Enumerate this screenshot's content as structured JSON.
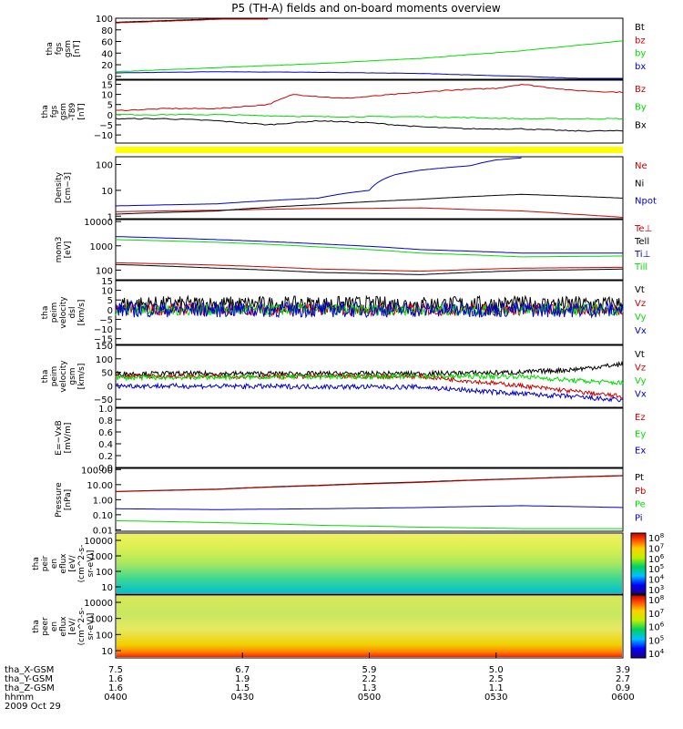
{
  "title": "P5 (TH-A) fields and on-board moments overview",
  "colors": {
    "black": "#000000",
    "red": "#cc0000",
    "green": "#00dd00",
    "blue": "#0000cc",
    "yellow": "#ffff00"
  },
  "date_label": "2009 Oct 29",
  "time_axis": {
    "row_labels": [
      "tha_X-GSM",
      "tha_Y-GSM",
      "tha_Z-GSM",
      "hhmm"
    ],
    "ticks": [
      {
        "x": "7.5",
        "y": "1.6",
        "z": "1.6",
        "hhmm": "0400"
      },
      {
        "x": "6.7",
        "y": "1.9",
        "z": "1.5",
        "hhmm": "0430"
      },
      {
        "x": "5.9",
        "y": "2.2",
        "z": "1.3",
        "hhmm": "0500"
      },
      {
        "x": "5.0",
        "y": "2.5",
        "z": "1.1",
        "hhmm": "0530"
      },
      {
        "x": "3.9",
        "y": "2.7",
        "z": "0.9",
        "hhmm": "0600"
      }
    ]
  },
  "chart_data": [
    {
      "type": "line",
      "ylabel": [
        "tha",
        "fgs",
        "gsm",
        "[nT]"
      ],
      "ylim": [
        -5,
        100
      ],
      "yticks": [
        "0",
        "20",
        "40",
        "60",
        "80",
        "100"
      ],
      "ytickvals": [
        0,
        20,
        40,
        60,
        80,
        100
      ],
      "series": [
        {
          "name": "Bt",
          "color": "black",
          "x": [
            0,
            0.1,
            0.2,
            0.3
          ],
          "values": [
            93,
            96,
            99,
            103
          ]
        },
        {
          "name": "bz",
          "color": "red",
          "x": [
            0,
            0.1,
            0.2,
            0.3
          ],
          "values": [
            92,
            95,
            98,
            102
          ]
        },
        {
          "name": "by",
          "color": "green",
          "x": [
            0,
            0.2,
            0.4,
            0.6,
            0.8,
            1.0
          ],
          "values": [
            8,
            15,
            22,
            31,
            44,
            61
          ]
        },
        {
          "name": "bx",
          "color": "blue",
          "x": [
            0,
            0.2,
            0.4,
            0.6,
            0.8,
            1.0
          ],
          "values": [
            6,
            8,
            7,
            5,
            0,
            -6
          ]
        }
      ]
    },
    {
      "type": "line",
      "ylabel": [
        "tha",
        "fgs",
        "gsm",
        "-T89",
        "[nT]"
      ],
      "ylim": [
        -14,
        17
      ],
      "yticks": [
        "−10",
        "−5",
        "0",
        "5",
        "10",
        "15"
      ],
      "ytickvals": [
        -10,
        -5,
        0,
        5,
        10,
        15
      ],
      "series": [
        {
          "name": "Bz",
          "color": "red",
          "x": [
            0,
            0.1,
            0.2,
            0.3,
            0.35,
            0.45,
            0.55,
            0.65,
            0.75,
            0.8,
            0.9,
            1.0
          ],
          "values": [
            2,
            3,
            3,
            5,
            10,
            8,
            10,
            12,
            13,
            15,
            12,
            11
          ]
        },
        {
          "name": "By",
          "color": "green",
          "x": [
            0,
            0.2,
            0.4,
            0.6,
            0.8,
            1.0
          ],
          "values": [
            0,
            0,
            -1,
            -1,
            -2,
            -2
          ]
        },
        {
          "name": "Bx",
          "color": "black",
          "x": [
            0,
            0.1,
            0.2,
            0.3,
            0.4,
            0.5,
            0.6,
            0.7,
            0.8,
            0.9,
            1.0
          ],
          "values": [
            -2,
            -2,
            -3,
            -5,
            -3,
            -4,
            -6,
            -7,
            -7,
            -8,
            -8
          ]
        }
      ]
    },
    {
      "type": "line",
      "scale": "log",
      "ylabel": [
        "Density",
        "[cm−3]"
      ],
      "ylim": [
        0.8,
        200
      ],
      "yticks": [
        "1",
        "10",
        "100"
      ],
      "ytickvals": [
        1,
        10,
        100
      ],
      "series": [
        {
          "name": "Ne",
          "color": "red",
          "x": [
            0,
            0.2,
            0.4,
            0.5,
            0.6,
            0.7,
            0.8,
            0.9,
            1.0
          ],
          "values": [
            1.5,
            1.7,
            2.0,
            2.0,
            2.1,
            1.8,
            1.6,
            1.2,
            0.9
          ]
        },
        {
          "name": "Ni",
          "color": "black",
          "x": [
            0,
            0.2,
            0.4,
            0.6,
            0.8,
            1.0
          ],
          "values": [
            1.2,
            1.6,
            2.8,
            4.5,
            7,
            5
          ]
        },
        {
          "name": "Npot",
          "color": "blue",
          "x": [
            0,
            0.2,
            0.4,
            0.5,
            0.55,
            0.6,
            0.7,
            0.75,
            0.8
          ],
          "values": [
            2.5,
            3,
            5,
            10,
            40,
            60,
            90,
            150,
            180
          ]
        }
      ]
    },
    {
      "type": "line",
      "scale": "log",
      "ylabel": [
        "mom3",
        "[eV]"
      ],
      "ylim": [
        40,
        12000
      ],
      "yticks": [
        "100",
        "1000",
        "10000"
      ],
      "ytickvals": [
        100,
        1000,
        10000
      ],
      "series": [
        {
          "name": "Te⊥",
          "color": "red",
          "x": [
            0,
            0.2,
            0.4,
            0.6,
            0.8,
            1.0
          ],
          "values": [
            200,
            160,
            110,
            90,
            120,
            130
          ]
        },
        {
          "name": "Tell",
          "color": "black",
          "x": [
            0,
            0.2,
            0.4,
            0.6,
            0.8,
            1.0
          ],
          "values": [
            170,
            120,
            80,
            65,
            95,
            110
          ]
        },
        {
          "name": "Ti⊥",
          "color": "blue",
          "x": [
            0,
            0.2,
            0.4,
            0.6,
            0.8,
            1.0
          ],
          "values": [
            2400,
            1800,
            1200,
            700,
            500,
            500
          ]
        },
        {
          "name": "Till",
          "color": "green",
          "x": [
            0,
            0.2,
            0.4,
            0.6,
            0.8,
            1.0
          ],
          "values": [
            1800,
            1400,
            900,
            500,
            350,
            380
          ]
        }
      ]
    },
    {
      "type": "line",
      "ylabel": [
        "tha",
        "peim",
        "velocity",
        "dsl",
        "[km/s]"
      ],
      "ylim": [
        -18,
        15
      ],
      "yticks": [
        "−15",
        "−10",
        "−5",
        "0",
        "5",
        "10",
        "15"
      ],
      "ytickvals": [
        -15,
        -10,
        -5,
        0,
        5,
        10,
        15
      ],
      "series": [
        {
          "name": "Vt",
          "color": "black",
          "x": [
            0,
            1.0
          ],
          "values": [
            3,
            3
          ]
        },
        {
          "name": "Vz",
          "color": "red",
          "x": [
            0,
            1.0
          ],
          "values": [
            0,
            0
          ]
        },
        {
          "name": "Vy",
          "color": "green",
          "x": [
            0,
            1.0
          ],
          "values": [
            0,
            0
          ]
        },
        {
          "name": "Vx",
          "color": "blue",
          "x": [
            0,
            1.0
          ],
          "values": [
            0,
            0
          ]
        }
      ]
    },
    {
      "type": "line",
      "ylabel": [
        "tha",
        "peim",
        "velocity",
        "gsm",
        "[km/s]"
      ],
      "ylim": [
        -80,
        150
      ],
      "yticks": [
        "−50",
        "0",
        "50",
        "100",
        "150"
      ],
      "ytickvals": [
        -50,
        0,
        50,
        100,
        150
      ],
      "series": [
        {
          "name": "Vt",
          "color": "black",
          "x": [
            0,
            0.6,
            0.8,
            0.9,
            1.0
          ],
          "values": [
            45,
            45,
            50,
            60,
            80
          ]
        },
        {
          "name": "Vz",
          "color": "red",
          "x": [
            0,
            0.6,
            0.8,
            0.9,
            1.0
          ],
          "values": [
            35,
            35,
            0,
            -20,
            -40
          ]
        },
        {
          "name": "Vy",
          "color": "green",
          "x": [
            0,
            0.6,
            0.8,
            0.9,
            1.0
          ],
          "values": [
            30,
            35,
            35,
            20,
            10
          ]
        },
        {
          "name": "Vx",
          "color": "blue",
          "x": [
            0,
            0.6,
            0.8,
            0.9,
            1.0
          ],
          "values": [
            0,
            -5,
            -30,
            -40,
            -55
          ]
        }
      ]
    },
    {
      "type": "line",
      "ylabel": [
        "E=−VxB",
        "[mV/m]"
      ],
      "ylim": [
        0,
        1
      ],
      "yticks": [
        "0.0",
        "0.2",
        "0.4",
        "0.6",
        "0.8",
        "1.0"
      ],
      "ytickvals": [
        0,
        0.2,
        0.4,
        0.6,
        0.8,
        1.0
      ],
      "series": [
        {
          "name": "Ez",
          "color": "red",
          "x": [],
          "values": []
        },
        {
          "name": "Ey",
          "color": "green",
          "x": [],
          "values": []
        },
        {
          "name": "Ex",
          "color": "blue",
          "x": [],
          "values": []
        }
      ]
    },
    {
      "type": "line",
      "scale": "log",
      "ylabel": [
        "Pressure",
        "[nPa]"
      ],
      "ylim": [
        0.008,
        120
      ],
      "yticks": [
        "0.01",
        "0.10",
        "1.00",
        "10.00",
        "100.00"
      ],
      "ytickvals": [
        0.01,
        0.1,
        1,
        10,
        100
      ],
      "series": [
        {
          "name": "Pt",
          "color": "black",
          "x": [
            0,
            0.2,
            0.4,
            0.6,
            0.8,
            1.0
          ],
          "values": [
            3.5,
            5,
            9,
            15,
            25,
            40
          ]
        },
        {
          "name": "Pb",
          "color": "red",
          "x": [
            0,
            0.2,
            0.4,
            0.6,
            0.8,
            1.0
          ],
          "values": [
            3.4,
            4.8,
            8.5,
            14,
            24,
            38
          ]
        },
        {
          "name": "Pe",
          "color": "green",
          "x": [
            0,
            0.2,
            0.4,
            0.6,
            0.8,
            1.0
          ],
          "values": [
            0.04,
            0.03,
            0.02,
            0.015,
            0.012,
            0.012
          ]
        },
        {
          "name": "Pi",
          "color": "blue",
          "x": [
            0,
            0.2,
            0.4,
            0.6,
            0.8,
            1.0
          ],
          "values": [
            0.25,
            0.22,
            0.25,
            0.3,
            0.4,
            0.3
          ]
        }
      ]
    },
    {
      "type": "heatmap",
      "ylabel": [
        "tha",
        "peir",
        "en",
        "eflux",
        "[eV/",
        "(cm^2-s-",
        "sr-eV)]"
      ],
      "yticks": [
        "10",
        "100",
        "1000",
        "10000"
      ],
      "colorbar": {
        "ticks": [
          "10^3",
          "10^4",
          "10^5",
          "10^6",
          "10^7",
          "10^8"
        ]
      }
    },
    {
      "type": "heatmap",
      "ylabel": [
        "tha",
        "peer",
        "en",
        "eflux",
        "[eV/",
        "(cm^2-s-",
        "sr-eV)]"
      ],
      "yticks": [
        "10",
        "100",
        "1000",
        "10000"
      ],
      "colorbar": {
        "ticks": [
          "10^4",
          "10^5",
          "10^6",
          "10^7",
          "10^8"
        ]
      }
    }
  ]
}
